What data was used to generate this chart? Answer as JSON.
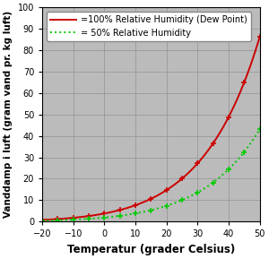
{
  "xlabel": "Temperatur (grader Celsius)",
  "ylabel": "Vanddamp i luft (gram vand pr. kg luft)",
  "xlim": [
    -20,
    50
  ],
  "ylim": [
    0,
    100
  ],
  "xticks": [
    -20,
    -10,
    0,
    10,
    20,
    30,
    40,
    50
  ],
  "yticks": [
    0,
    10,
    20,
    30,
    40,
    50,
    60,
    70,
    80,
    90,
    100
  ],
  "legend1": "=100% Relative Humidity (Dew Point)",
  "legend2": "= 50% Relative Humidity",
  "line1_color": "#cc0000",
  "line2_color": "#00cc00",
  "bg_color": "#bbbbbb",
  "fig_bg_color": "#ffffff",
  "grid_color": "#999999",
  "xlabel_fontsize": 8.5,
  "ylabel_fontsize": 7.5,
  "legend_fontsize": 7,
  "tick_labelsize": 7,
  "line_width": 1.4
}
